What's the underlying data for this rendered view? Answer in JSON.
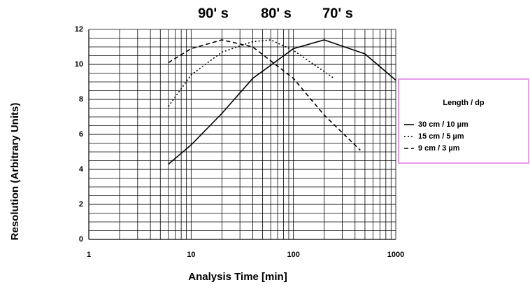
{
  "chart_data": {
    "type": "line",
    "annotations": [
      "90' s",
      "80' s",
      "70' s"
    ],
    "x_label": "Analysis Time [min]",
    "y_label": "Resolution (Arbitrary Units)",
    "legend_title": "Length  /  dp",
    "log_x": true,
    "grid": true,
    "xlim": [
      1,
      1000
    ],
    "xticks": [
      1,
      10,
      100,
      1000
    ],
    "ylim": [
      0,
      12
    ],
    "yticks": [
      0,
      2,
      4,
      6,
      8,
      10,
      12
    ],
    "series": [
      {
        "name": "30 cm / 10 µm",
        "color": "#000000",
        "dash": "none",
        "x": [
          6,
          10,
          20,
          40,
          100,
          200,
          500,
          1000
        ],
        "values": [
          4.3,
          5.4,
          7.2,
          9.2,
          10.9,
          11.4,
          10.6,
          9.1
        ]
      },
      {
        "name": "15 cm / 5 µm",
        "color": "#000000",
        "dash": "2 3",
        "x": [
          6,
          10,
          20,
          40,
          60,
          100,
          250
        ],
        "values": [
          7.6,
          9.4,
          10.7,
          11.3,
          11.4,
          10.8,
          9.2
        ]
      },
      {
        "name": "9 cm / 3 µm",
        "color": "#000000",
        "dash": "6 4",
        "x": [
          6,
          10,
          20,
          40,
          100,
          200,
          450
        ],
        "values": [
          10.1,
          10.9,
          11.4,
          11.0,
          9.2,
          7.1,
          5.1
        ]
      }
    ]
  }
}
